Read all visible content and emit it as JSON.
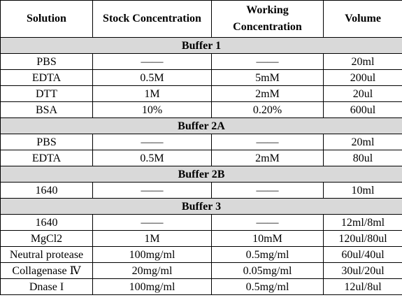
{
  "table": {
    "headers": [
      "Solution",
      "Stock Concentration",
      "Working Concentration",
      "Volume"
    ],
    "sections": [
      {
        "title": "Buffer 1",
        "rows": [
          [
            "PBS",
            "——",
            "——",
            "20ml"
          ],
          [
            "EDTA",
            "0.5M",
            "5mM",
            "200ul"
          ],
          [
            "DTT",
            "1M",
            "2mM",
            "20ul"
          ],
          [
            "BSA",
            "10%",
            "0.20%",
            "600ul"
          ]
        ]
      },
      {
        "title": "Buffer 2A",
        "rows": [
          [
            "PBS",
            "——",
            "——",
            "20ml"
          ],
          [
            "EDTA",
            "0.5M",
            "2mM",
            "80ul"
          ]
        ]
      },
      {
        "title": "Buffer 2B",
        "rows": [
          [
            "1640",
            "——",
            "——",
            "10ml"
          ]
        ]
      },
      {
        "title": "Buffer 3",
        "rows": [
          [
            "1640",
            "——",
            "——",
            "12ml/8ml"
          ],
          [
            "MgCl2",
            "1M",
            "10mM",
            "120ul/80ul"
          ],
          [
            "Neutral protease",
            "100mg/ml",
            "0.5mg/ml",
            "60ul/40ul"
          ],
          [
            "Collagenase Ⅳ",
            "20mg/ml",
            "0.05mg/ml",
            "30ul/20ul"
          ],
          [
            "Dnase I",
            "100mg/ml",
            "0.5mg/ml",
            "12ul/8ul"
          ]
        ]
      }
    ]
  },
  "colors": {
    "section_background": "#d9d9d9",
    "border": "#000000"
  }
}
